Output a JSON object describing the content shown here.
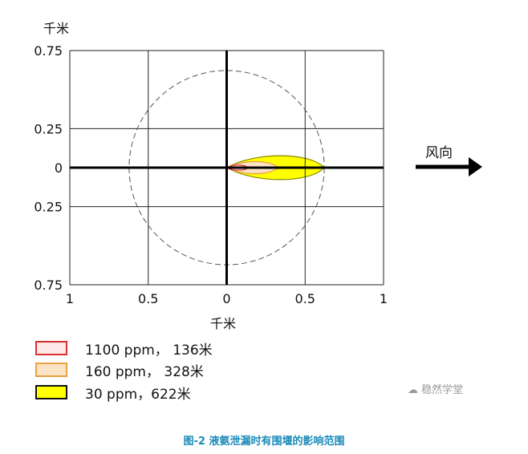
{
  "chart_data": {
    "type": "area",
    "title": "",
    "xlabel": "千米",
    "ylabel": "千米",
    "xlim": [
      -1,
      1
    ],
    "ylim": [
      -0.75,
      0.75
    ],
    "x_tick_labels": [
      "1",
      "0.5",
      "0",
      "0.5",
      "1"
    ],
    "x_ticks": [
      -1,
      -0.5,
      0,
      0.5,
      1
    ],
    "y_tick_labels": [
      "0.75",
      "0.25",
      "0",
      "0.25",
      "0.75"
    ],
    "y_ticks": [
      0.75,
      0.25,
      0,
      -0.25,
      -0.75
    ],
    "grid": true,
    "circle_radius_km": 0.622,
    "series": [
      {
        "name": "30 ppm，622米",
        "length_km": 0.622,
        "half_width_km": 0.095,
        "color": "#ffff00",
        "edge": "#8a8a00"
      },
      {
        "name": "160 ppm， 328米",
        "length_km": 0.328,
        "half_width_km": 0.048,
        "color": "#fbe3c6",
        "edge": "#e8a040"
      },
      {
        "name": "1100 ppm， 136米",
        "length_km": 0.136,
        "half_width_km": 0.02,
        "color": "#fde8e8",
        "edge": "#d83030"
      }
    ],
    "annotation": "风向",
    "legend_position": "bottom-left"
  },
  "caption": "图-2 液氨泄漏时有围堰的影响范围",
  "watermark": "稳然学堂"
}
